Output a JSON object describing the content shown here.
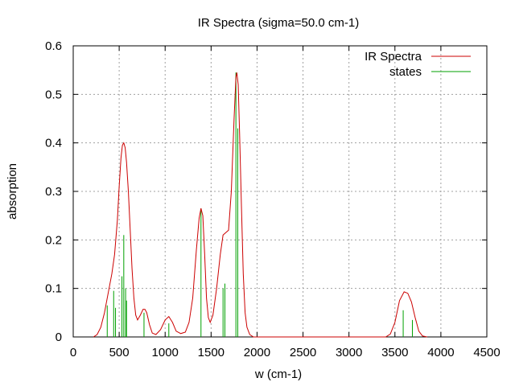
{
  "chart_data": {
    "type": "line",
    "title": "IR Spectra (sigma=50.0 cm-1)",
    "xlabel": "w (cm-1)",
    "ylabel": "absorption",
    "xlim": [
      0,
      4500
    ],
    "ylim": [
      0,
      0.6
    ],
    "xticks": [
      "0",
      "500",
      "1000",
      "1500",
      "2000",
      "2500",
      "3000",
      "3500",
      "4000",
      "4500"
    ],
    "yticks": [
      "0",
      "0.1",
      "0.2",
      "0.3",
      "0.4",
      "0.5",
      "0.6"
    ],
    "grid": true,
    "legend_position": "top-right",
    "series": [
      {
        "name": "IR Spectra",
        "style": "line",
        "color": "#cc0000",
        "points": [
          [
            220,
            0.0
          ],
          [
            260,
            0.005
          ],
          [
            300,
            0.02
          ],
          [
            340,
            0.05
          ],
          [
            380,
            0.09
          ],
          [
            420,
            0.13
          ],
          [
            450,
            0.17
          ],
          [
            480,
            0.24
          ],
          [
            500,
            0.31
          ],
          [
            520,
            0.37
          ],
          [
            535,
            0.395
          ],
          [
            550,
            0.4
          ],
          [
            565,
            0.39
          ],
          [
            580,
            0.36
          ],
          [
            600,
            0.3
          ],
          [
            620,
            0.22
          ],
          [
            640,
            0.14
          ],
          [
            660,
            0.08
          ],
          [
            680,
            0.045
          ],
          [
            700,
            0.035
          ],
          [
            730,
            0.045
          ],
          [
            760,
            0.057
          ],
          [
            780,
            0.057
          ],
          [
            800,
            0.05
          ],
          [
            830,
            0.025
          ],
          [
            860,
            0.008
          ],
          [
            900,
            0.005
          ],
          [
            950,
            0.015
          ],
          [
            1000,
            0.035
          ],
          [
            1040,
            0.042
          ],
          [
            1080,
            0.03
          ],
          [
            1120,
            0.012
          ],
          [
            1170,
            0.007
          ],
          [
            1220,
            0.01
          ],
          [
            1260,
            0.03
          ],
          [
            1300,
            0.08
          ],
          [
            1340,
            0.18
          ],
          [
            1370,
            0.245
          ],
          [
            1390,
            0.265
          ],
          [
            1410,
            0.25
          ],
          [
            1430,
            0.17
          ],
          [
            1450,
            0.08
          ],
          [
            1470,
            0.04
          ],
          [
            1490,
            0.03
          ],
          [
            1520,
            0.045
          ],
          [
            1560,
            0.1
          ],
          [
            1600,
            0.17
          ],
          [
            1630,
            0.21
          ],
          [
            1660,
            0.215
          ],
          [
            1690,
            0.22
          ],
          [
            1720,
            0.3
          ],
          [
            1750,
            0.45
          ],
          [
            1770,
            0.535
          ],
          [
            1780,
            0.545
          ],
          [
            1795,
            0.52
          ],
          [
            1810,
            0.42
          ],
          [
            1830,
            0.27
          ],
          [
            1850,
            0.13
          ],
          [
            1870,
            0.05
          ],
          [
            1890,
            0.02
          ],
          [
            1920,
            0.005
          ],
          [
            1960,
            0.0
          ],
          [
            2000,
            0.0
          ],
          [
            2500,
            0.0
          ],
          [
            3000,
            0.0
          ],
          [
            3400,
            0.0
          ],
          [
            3450,
            0.006
          ],
          [
            3500,
            0.03
          ],
          [
            3550,
            0.075
          ],
          [
            3600,
            0.093
          ],
          [
            3640,
            0.09
          ],
          [
            3680,
            0.072
          ],
          [
            3720,
            0.04
          ],
          [
            3760,
            0.012
          ],
          [
            3800,
            0.002
          ],
          [
            3850,
            0.0
          ]
        ]
      },
      {
        "name": "states",
        "style": "impulses",
        "color": "#00a000",
        "points": [
          [
            370,
            0.065
          ],
          [
            440,
            0.095
          ],
          [
            460,
            0.06
          ],
          [
            530,
            0.125
          ],
          [
            550,
            0.21
          ],
          [
            570,
            0.1
          ],
          [
            580,
            0.075
          ],
          [
            770,
            0.05
          ],
          [
            1040,
            0.028
          ],
          [
            1390,
            0.265
          ],
          [
            1630,
            0.1
          ],
          [
            1650,
            0.11
          ],
          [
            1770,
            0.545
          ],
          [
            1790,
            0.43
          ],
          [
            3590,
            0.055
          ],
          [
            3690,
            0.035
          ]
        ]
      }
    ]
  }
}
